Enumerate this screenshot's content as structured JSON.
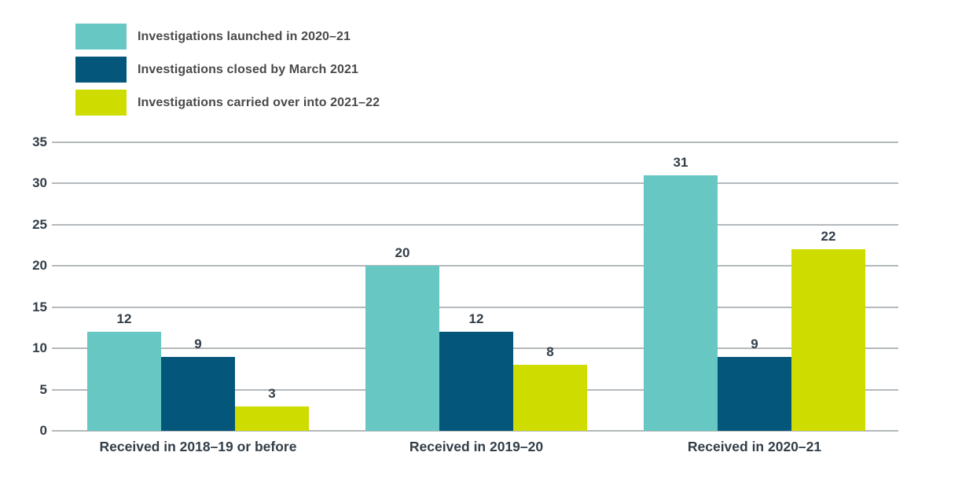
{
  "chart_data": {
    "type": "bar",
    "title": "",
    "xlabel": "",
    "ylabel": "",
    "categories": [
      "Received in 2018–19 or before",
      "Received in 2019–20",
      "Received in 2020–21"
    ],
    "series": [
      {
        "name": "Investigations launched in 2020–21",
        "color": "#66c7c3",
        "values": [
          12,
          20,
          31
        ]
      },
      {
        "name": "Investigations closed by March 2021",
        "color": "#05567b",
        "values": [
          9,
          12,
          9
        ]
      },
      {
        "name": "Investigations carried over into 2021–22",
        "color": "#cedc00",
        "values": [
          3,
          8,
          22
        ]
      }
    ],
    "ylim": [
      0,
      35
    ],
    "yticks": [
      0,
      5,
      10,
      15,
      20,
      25,
      30,
      35
    ],
    "grid": true,
    "legend_position": "top-left",
    "colors": {
      "gridline": "#b4b9bc",
      "tick_label": "#333e48",
      "value_label": "#333e48",
      "legend_text": "#4a4a4a",
      "background": "#ffffff"
    }
  }
}
